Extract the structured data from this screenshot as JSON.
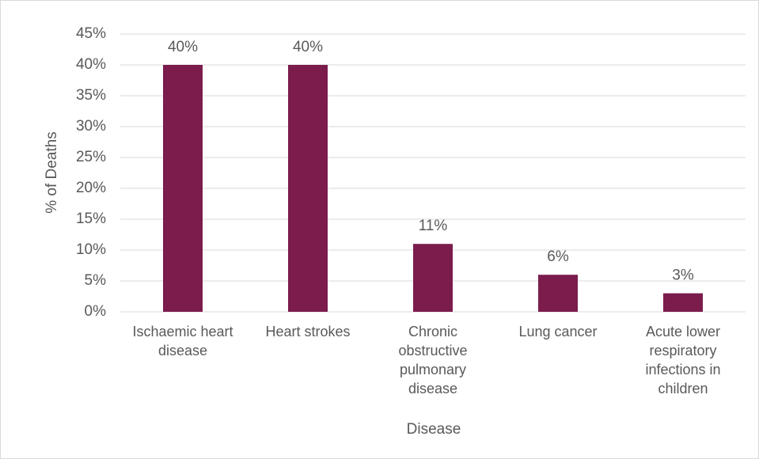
{
  "chart_data": {
    "type": "bar",
    "y_label": "% of Deaths",
    "x_label": "Disease",
    "categories": [
      "Ischaemic heart disease",
      "Heart strokes",
      "Chronic obstructive pulmonary disease",
      "Lung cancer",
      "Acute lower respiratory infections in children"
    ],
    "values": [
      40,
      40,
      11,
      6,
      3
    ],
    "value_labels": [
      "40%",
      "40%",
      "11%",
      "6%",
      "3%"
    ],
    "color": "#7b1c4d",
    "ylim": [
      0,
      45
    ],
    "yticks": [
      {
        "value": 0,
        "label": "0%"
      },
      {
        "value": 5,
        "label": "5%"
      },
      {
        "value": 10,
        "label": "10%"
      },
      {
        "value": 15,
        "label": "15%"
      },
      {
        "value": 20,
        "label": "20%"
      },
      {
        "value": 25,
        "label": "25%"
      },
      {
        "value": 30,
        "label": "30%"
      },
      {
        "value": 35,
        "label": "35%"
      },
      {
        "value": 40,
        "label": "40%"
      },
      {
        "value": 45,
        "label": "45%"
      }
    ],
    "grid": true
  }
}
